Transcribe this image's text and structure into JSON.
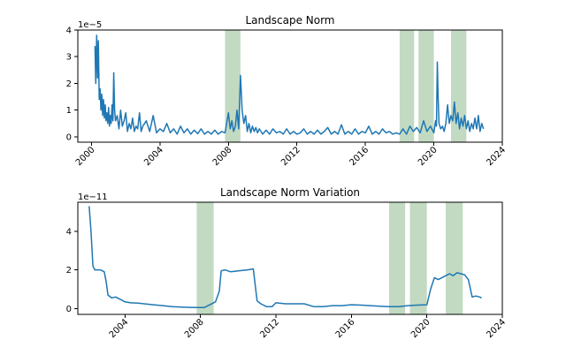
{
  "chart_data": [
    {
      "type": "line",
      "title": "Landscape Norm",
      "y_scale_label": "1e−5",
      "x_range": [
        1999.2,
        2024.0
      ],
      "ylim": [
        -0.2,
        4.0
      ],
      "x_ticks": [
        2000,
        2004,
        2008,
        2012,
        2016,
        2020,
        2024
      ],
      "x_tick_labels": [
        "2000",
        "2004",
        "2008",
        "2012",
        "2016",
        "2020",
        "2024"
      ],
      "y_ticks": [
        0,
        1,
        2,
        3,
        4
      ],
      "y_tick_labels": [
        "0",
        "1",
        "2",
        "3",
        "4"
      ],
      "shaded_regions": [
        [
          2007.8,
          2008.7
        ],
        [
          2018.0,
          2018.85
        ],
        [
          2019.1,
          2020.0
        ],
        [
          2021.0,
          2021.9
        ]
      ],
      "highlight_color": "#8fbc8f",
      "series_color": "#1f77b4",
      "grid": false,
      "series": [
        {
          "x": [
            2000.2,
            2000.25,
            2000.3,
            2000.35,
            2000.4,
            2000.45,
            2000.5,
            2000.55,
            2000.6,
            2000.65,
            2000.7,
            2000.75,
            2000.8,
            2000.85,
            2000.9,
            2000.95,
            2001.0,
            2001.05,
            2001.1,
            2001.15,
            2001.2,
            2001.25,
            2001.3,
            2001.35,
            2001.4,
            2001.5,
            2001.6,
            2001.7,
            2001.8,
            2001.9,
            2002.0,
            2002.1,
            2002.2,
            2002.3,
            2002.4,
            2002.5,
            2002.6,
            2002.7,
            2002.8,
            2002.9,
            2003.0,
            2003.2,
            2003.4,
            2003.6,
            2003.8,
            2004.0,
            2004.2,
            2004.4,
            2004.6,
            2004.8,
            2005.0,
            2005.2,
            2005.4,
            2005.6,
            2005.8,
            2006.0,
            2006.2,
            2006.4,
            2006.6,
            2006.8,
            2007.0,
            2007.2,
            2007.4,
            2007.6,
            2007.8,
            2008.0,
            2008.1,
            2008.2,
            2008.3,
            2008.4,
            2008.5,
            2008.6,
            2008.7,
            2008.8,
            2008.9,
            2009.0,
            2009.1,
            2009.2,
            2009.3,
            2009.4,
            2009.5,
            2009.6,
            2009.7,
            2009.8,
            2010.0,
            2010.2,
            2010.4,
            2010.6,
            2010.8,
            2011.0,
            2011.2,
            2011.4,
            2011.6,
            2011.8,
            2012.0,
            2012.2,
            2012.4,
            2012.6,
            2012.8,
            2013.0,
            2013.2,
            2013.4,
            2013.6,
            2013.8,
            2014.0,
            2014.2,
            2014.4,
            2014.6,
            2014.8,
            2015.0,
            2015.2,
            2015.4,
            2015.6,
            2015.8,
            2016.0,
            2016.2,
            2016.4,
            2016.6,
            2016.8,
            2017.0,
            2017.2,
            2017.4,
            2017.6,
            2017.8,
            2018.0,
            2018.2,
            2018.4,
            2018.6,
            2018.8,
            2019.0,
            2019.2,
            2019.4,
            2019.6,
            2019.8,
            2020.0,
            2020.1,
            2020.15,
            2020.2,
            2020.25,
            2020.3,
            2020.4,
            2020.5,
            2020.6,
            2020.7,
            2020.8,
            2020.9,
            2021.0,
            2021.1,
            2021.2,
            2021.3,
            2021.4,
            2021.5,
            2021.6,
            2021.7,
            2021.8,
            2021.9,
            2022.0,
            2022.1,
            2022.2,
            2022.3,
            2022.4,
            2022.5,
            2022.6,
            2022.7,
            2022.8,
            2022.9
          ],
          "y": [
            3.4,
            2.0,
            3.8,
            2.2,
            3.6,
            1.4,
            1.8,
            1.0,
            1.6,
            0.8,
            1.4,
            0.7,
            1.2,
            0.6,
            0.9,
            0.5,
            1.1,
            0.4,
            0.8,
            0.5,
            1.2,
            0.6,
            2.4,
            1.0,
            0.6,
            0.8,
            0.3,
            1.0,
            0.4,
            0.6,
            0.9,
            0.2,
            0.5,
            0.3,
            0.7,
            0.2,
            0.4,
            0.3,
            0.9,
            0.2,
            0.4,
            0.6,
            0.2,
            0.8,
            0.15,
            0.3,
            0.2,
            0.5,
            0.15,
            0.3,
            0.1,
            0.4,
            0.15,
            0.3,
            0.1,
            0.25,
            0.12,
            0.3,
            0.1,
            0.2,
            0.1,
            0.25,
            0.1,
            0.2,
            0.15,
            0.9,
            0.3,
            0.6,
            0.2,
            0.4,
            1.0,
            0.3,
            2.3,
            1.0,
            0.5,
            0.8,
            0.2,
            0.5,
            0.15,
            0.4,
            0.2,
            0.35,
            0.15,
            0.3,
            0.1,
            0.25,
            0.1,
            0.3,
            0.15,
            0.2,
            0.1,
            0.3,
            0.1,
            0.2,
            0.1,
            0.15,
            0.3,
            0.1,
            0.2,
            0.1,
            0.25,
            0.1,
            0.2,
            0.35,
            0.1,
            0.2,
            0.1,
            0.45,
            0.1,
            0.2,
            0.1,
            0.3,
            0.1,
            0.2,
            0.15,
            0.4,
            0.1,
            0.2,
            0.1,
            0.3,
            0.15,
            0.2,
            0.1,
            0.15,
            0.1,
            0.3,
            0.1,
            0.4,
            0.2,
            0.35,
            0.15,
            0.6,
            0.2,
            0.4,
            0.15,
            0.6,
            0.4,
            2.8,
            1.5,
            0.5,
            0.3,
            0.4,
            0.2,
            0.5,
            1.2,
            0.5,
            0.8,
            0.6,
            1.3,
            0.5,
            0.9,
            0.3,
            0.7,
            0.4,
            0.8,
            0.3,
            0.6,
            0.2,
            0.5,
            0.3,
            0.7,
            0.3,
            0.8,
            0.2,
            0.5,
            0.3
          ]
        }
      ]
    },
    {
      "type": "line",
      "title": "Landscape Norm Variation",
      "y_scale_label": "1e−11",
      "x_range": [
        2001.5,
        2024.0
      ],
      "ylim": [
        -0.3,
        5.5
      ],
      "x_ticks": [
        2004,
        2008,
        2012,
        2016,
        2020,
        2024
      ],
      "x_tick_labels": [
        "2004",
        "2008",
        "2012",
        "2016",
        "2020",
        "2024"
      ],
      "y_ticks": [
        0,
        2,
        4
      ],
      "y_tick_labels": [
        "0",
        "2",
        "4"
      ],
      "shaded_regions": [
        [
          2007.8,
          2008.7
        ],
        [
          2018.0,
          2018.85
        ],
        [
          2019.1,
          2020.0
        ],
        [
          2021.0,
          2021.9
        ]
      ],
      "highlight_color": "#8fbc8f",
      "series_color": "#1f77b4",
      "grid": false,
      "series": [
        {
          "x": [
            2002.1,
            2002.2,
            2002.3,
            2002.4,
            2002.5,
            2002.7,
            2002.9,
            2003.0,
            2003.1,
            2003.3,
            2003.5,
            2003.8,
            2004.0,
            2004.3,
            2004.7,
            2005.0,
            2005.5,
            2006.0,
            2006.5,
            2007.0,
            2007.5,
            2007.9,
            2008.2,
            2008.5,
            2008.8,
            2009.0,
            2009.1,
            2009.3,
            2009.6,
            2010.0,
            2010.5,
            2010.8,
            2011.0,
            2011.2,
            2011.5,
            2011.8,
            2012.0,
            2012.5,
            2013.0,
            2013.5,
            2014.0,
            2014.5,
            2015.0,
            2015.5,
            2016.0,
            2016.5,
            2017.0,
            2017.5,
            2018.0,
            2018.5,
            2019.0,
            2019.5,
            2020.0,
            2020.2,
            2020.4,
            2020.6,
            2020.8,
            2021.0,
            2021.2,
            2021.4,
            2021.6,
            2021.8,
            2022.0,
            2022.2,
            2022.4,
            2022.6,
            2022.8,
            2022.9
          ],
          "y": [
            5.3,
            4.0,
            2.2,
            2.0,
            2.0,
            2.0,
            1.9,
            1.4,
            0.7,
            0.55,
            0.6,
            0.45,
            0.35,
            0.3,
            0.28,
            0.25,
            0.2,
            0.15,
            0.1,
            0.08,
            0.06,
            0.05,
            0.05,
            0.2,
            0.35,
            0.9,
            1.95,
            2.0,
            1.9,
            1.95,
            2.0,
            2.05,
            0.4,
            0.25,
            0.1,
            0.1,
            0.3,
            0.25,
            0.25,
            0.25,
            0.1,
            0.1,
            0.15,
            0.15,
            0.2,
            0.18,
            0.15,
            0.12,
            0.1,
            0.1,
            0.15,
            0.18,
            0.2,
            1.0,
            1.6,
            1.5,
            1.6,
            1.7,
            1.8,
            1.7,
            1.85,
            1.8,
            1.75,
            1.5,
            0.6,
            0.65,
            0.6,
            0.55
          ]
        }
      ]
    }
  ]
}
